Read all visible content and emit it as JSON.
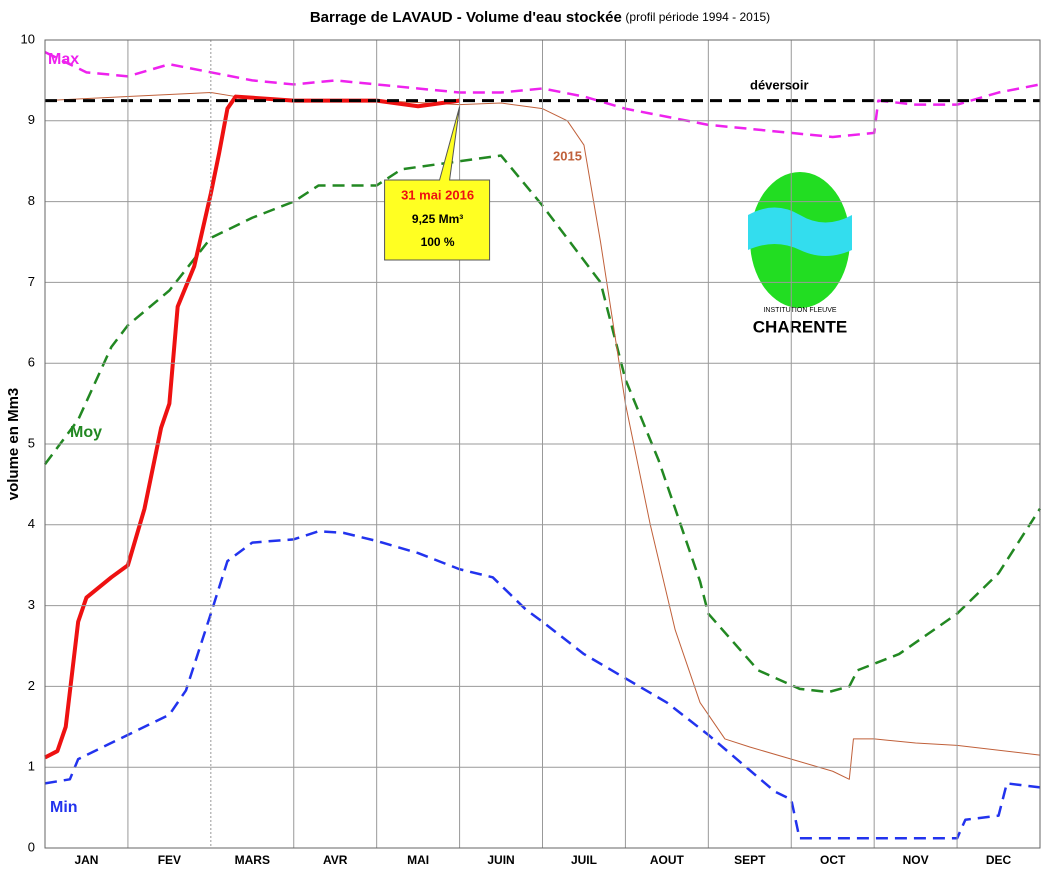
{
  "chart_data": {
    "type": "line",
    "title": "Barrage de LAVAUD - Volume d'eau stockée",
    "subtitle": "(profil période 1994 - 2015)",
    "y_label": "volume en Mm3",
    "categories": [
      "JAN",
      "FEV",
      "MARS",
      "AVR",
      "MAI",
      "JUIN",
      "JUIL",
      "AOUT",
      "SEPT",
      "OCT",
      "NOV",
      "DEC"
    ],
    "xlim": [
      0,
      12
    ],
    "ylim": [
      0,
      10
    ],
    "yticks": [
      0,
      1,
      2,
      3,
      4,
      5,
      6,
      7,
      8,
      9,
      10
    ],
    "grid": true,
    "series": [
      {
        "name": "Max",
        "color": "#ee22ee",
        "dash": true,
        "x": [
          0,
          0.5,
          1,
          1.5,
          2,
          2.5,
          3,
          3.5,
          4,
          4.5,
          5,
          5.5,
          6,
          6.5,
          7,
          7.5,
          8,
          8.5,
          9,
          9.5,
          10,
          10.05,
          10.5,
          11,
          11.5,
          12
        ],
        "values": [
          9.85,
          9.6,
          9.55,
          9.7,
          9.6,
          9.5,
          9.45,
          9.5,
          9.45,
          9.4,
          9.35,
          9.35,
          9.4,
          9.3,
          9.15,
          9.05,
          8.95,
          8.9,
          8.85,
          8.8,
          8.85,
          9.25,
          9.2,
          9.2,
          9.35,
          9.45
        ]
      },
      {
        "name": "Moy",
        "color": "#228822",
        "dash": true,
        "x": [
          0,
          0.4,
          0.8,
          1,
          1.5,
          2,
          2.5,
          3,
          3.3,
          4,
          4.3,
          5,
          5.5,
          6,
          6.7,
          7,
          7.4,
          7.9,
          8,
          8.6,
          9.1,
          9.45,
          9.7,
          9.8,
          10.3,
          11,
          11.5,
          12
        ],
        "values": [
          4.75,
          5.3,
          6.2,
          6.47,
          6.9,
          7.55,
          7.8,
          8.0,
          8.2,
          8.2,
          8.4,
          8.5,
          8.57,
          7.95,
          7.0,
          5.8,
          4.8,
          3.3,
          2.9,
          2.2,
          1.97,
          1.93,
          2.0,
          2.2,
          2.4,
          2.9,
          3.4,
          4.2
        ]
      },
      {
        "name": "Min",
        "color": "#2233ee",
        "dash": true,
        "x": [
          0,
          0.3,
          0.4,
          1,
          1.5,
          1.7,
          2,
          2.2,
          2.5,
          3,
          3.3,
          3.6,
          4,
          4.5,
          5,
          5.4,
          5.8,
          6,
          6.5,
          7,
          7.5,
          8,
          8.4,
          8.8,
          9,
          9.1,
          11,
          11.1,
          11.5,
          11.6,
          12
        ],
        "values": [
          0.8,
          0.85,
          1.1,
          1.4,
          1.65,
          1.95,
          2.9,
          3.55,
          3.78,
          3.82,
          3.92,
          3.9,
          3.8,
          3.65,
          3.45,
          3.35,
          2.95,
          2.8,
          2.4,
          2.1,
          1.8,
          1.4,
          1.05,
          0.7,
          0.6,
          0.12,
          0.12,
          0.35,
          0.4,
          0.8,
          0.75
        ]
      },
      {
        "name": "2015",
        "color": "#c0603a",
        "dash": false,
        "width": 1,
        "x": [
          0,
          1,
          2,
          2.3,
          3,
          4,
          5,
          5.5,
          6,
          6.3,
          6.5,
          6.7,
          7,
          7.3,
          7.6,
          7.9,
          8.2,
          8.5,
          9,
          9.5,
          9.7,
          9.75,
          10,
          10.5,
          11,
          12
        ],
        "values": [
          9.25,
          9.3,
          9.35,
          9.3,
          9.25,
          9.25,
          9.2,
          9.22,
          9.15,
          9.0,
          8.7,
          7.5,
          5.5,
          4.0,
          2.7,
          1.8,
          1.35,
          1.25,
          1.1,
          0.95,
          0.85,
          1.35,
          1.35,
          1.3,
          1.27,
          1.15
        ]
      },
      {
        "name": "2016",
        "color": "#ee1111",
        "dash": false,
        "width": 4,
        "x": [
          0,
          0.15,
          0.25,
          0.4,
          0.5,
          0.8,
          1,
          1.2,
          1.4,
          1.5,
          1.6,
          1.8,
          2,
          2.1,
          2.2,
          2.3,
          3,
          4,
          4.5,
          5
        ],
        "values": [
          1.12,
          1.2,
          1.5,
          2.8,
          3.1,
          3.35,
          3.5,
          4.2,
          5.2,
          5.5,
          6.7,
          7.2,
          8.1,
          8.6,
          9.15,
          9.3,
          9.25,
          9.25,
          9.18,
          9.25
        ]
      },
      {
        "name": "déversoir",
        "color": "#000000",
        "dash": true,
        "width": 3,
        "x": [
          0,
          12
        ],
        "values": [
          9.25,
          9.25
        ]
      }
    ],
    "annotation": {
      "x": 5,
      "value": 9.25,
      "date": "31 mai 2016",
      "volume": "9,25 Mm³",
      "percent": "100 %"
    },
    "logo": {
      "line1": "INSTITUTION FLEUVE",
      "line2": "CHARENTE"
    }
  }
}
